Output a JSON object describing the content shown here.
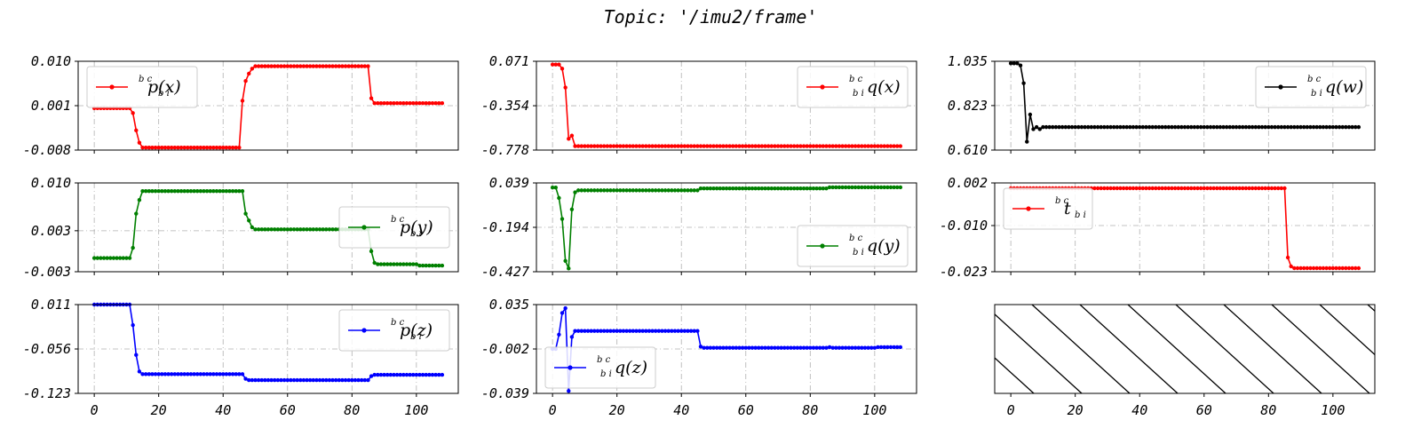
{
  "figure": {
    "title": "Topic: '/imu2/frame'"
  },
  "chart_data": [
    {
      "type": "line",
      "panel": "top-left",
      "series": [
        {
          "name": "p_x",
          "legend_main": "p",
          "legend_sup": "b^c",
          "legend_sub": "b^i",
          "legend_arg": "(x)",
          "color": "#ff0000",
          "segments": [
            [
              0,
              0.0005
            ],
            [
              11,
              0.0005
            ],
            [
              12,
              -0.0005
            ],
            [
              13,
              -0.004
            ],
            [
              14,
              -0.0065
            ],
            [
              15,
              -0.0075
            ],
            [
              45,
              -0.0075
            ],
            [
              46,
              0.002
            ],
            [
              47,
              0.006
            ],
            [
              48,
              0.0075
            ],
            [
              49,
              0.0085
            ],
            [
              50,
              0.009
            ],
            [
              85,
              0.009
            ],
            [
              86,
              0.0025
            ],
            [
              87,
              0.0015
            ],
            [
              108,
              0.0015
            ]
          ]
        }
      ],
      "yticks": [
        "0.010",
        "0.001",
        "-0.008"
      ],
      "ylim": [
        -0.008,
        0.01
      ],
      "xlim": [
        -5,
        113
      ],
      "xticks": [
        "0",
        "20",
        "40",
        "60",
        "80",
        "100"
      ],
      "show_xticklabels": false,
      "legend": "upper-left"
    },
    {
      "type": "line",
      "panel": "top-middle",
      "series": [
        {
          "name": "q_x",
          "legend_main": "q",
          "legend_sup": "b^c",
          "legend_sub": "b^i",
          "legend_arg": "(x)",
          "color": "#ff0000",
          "segments": [
            [
              0,
              0.04
            ],
            [
              2,
              0.04
            ],
            [
              3,
              0.0
            ],
            [
              4,
              -0.18
            ],
            [
              5,
              -0.67
            ],
            [
              6,
              -0.64
            ],
            [
              7,
              -0.74
            ],
            [
              108,
              -0.74
            ]
          ]
        }
      ],
      "yticks": [
        "0.071",
        "-0.354",
        "-0.778"
      ],
      "ylim": [
        -0.778,
        0.071
      ],
      "xlim": [
        -5,
        113
      ],
      "xticks": [
        "0",
        "20",
        "40",
        "60",
        "80",
        "100"
      ],
      "show_xticklabels": false,
      "legend": "upper-right"
    },
    {
      "type": "line",
      "panel": "top-right",
      "series": [
        {
          "name": "q_w",
          "legend_main": "q",
          "legend_sup": "b^c",
          "legend_sub": "b^i",
          "legend_arg": "(w)",
          "color": "#000000",
          "segments": [
            [
              0,
              1.025
            ],
            [
              2,
              1.025
            ],
            [
              3,
              1.015
            ],
            [
              4,
              0.93
            ],
            [
              5,
              0.65
            ],
            [
              6,
              0.78
            ],
            [
              7,
              0.71
            ],
            [
              8,
              0.72
            ],
            [
              9,
              0.71
            ],
            [
              10,
              0.72
            ],
            [
              108,
              0.72
            ]
          ]
        }
      ],
      "yticks": [
        "1.035",
        "0.823",
        "0.610"
      ],
      "ylim": [
        0.61,
        1.035
      ],
      "xlim": [
        -5,
        113
      ],
      "xticks": [
        "0",
        "20",
        "40",
        "60",
        "80",
        "100"
      ],
      "show_xticklabels": false,
      "legend": "upper-right"
    },
    {
      "type": "line",
      "panel": "middle-left",
      "series": [
        {
          "name": "p_y",
          "legend_main": "p",
          "legend_sup": "b^c",
          "legend_sub": "b^i",
          "legend_arg": "(y)",
          "color": "#008000",
          "segments": [
            [
              0,
              -0.001
            ],
            [
              11,
              -0.001
            ],
            [
              12,
              0.0005
            ],
            [
              13,
              0.0055
            ],
            [
              14,
              0.0075
            ],
            [
              15,
              0.0088
            ],
            [
              46,
              0.0088
            ],
            [
              47,
              0.0055
            ],
            [
              48,
              0.0045
            ],
            [
              49,
              0.0035
            ],
            [
              50,
              0.0032
            ],
            [
              85,
              0.0032
            ],
            [
              86,
              0.0
            ],
            [
              87,
              -0.0017
            ],
            [
              88,
              -0.0019
            ],
            [
              100,
              -0.0019
            ],
            [
              101,
              -0.0021
            ],
            [
              108,
              -0.0021
            ]
          ]
        }
      ],
      "yticks": [
        "0.010",
        "0.003",
        "-0.003"
      ],
      "ylim": [
        -0.003,
        0.01
      ],
      "xlim": [
        -5,
        113
      ],
      "xticks": [
        "0",
        "20",
        "40",
        "60",
        "80",
        "100"
      ],
      "show_xticklabels": false,
      "legend": "center-right"
    },
    {
      "type": "line",
      "panel": "middle-middle",
      "series": [
        {
          "name": "q_y",
          "legend_main": "q",
          "legend_sup": "b^c",
          "legend_sub": "b^i",
          "legend_arg": "(y)",
          "color": "#008000",
          "segments": [
            [
              0,
              0.015
            ],
            [
              1,
              0.015
            ],
            [
              2,
              -0.04
            ],
            [
              3,
              -0.15
            ],
            [
              4,
              -0.37
            ],
            [
              5,
              -0.41
            ],
            [
              6,
              -0.1
            ],
            [
              7,
              -0.01
            ],
            [
              8,
              0.0
            ],
            [
              45,
              0.0
            ],
            [
              46,
              0.01
            ],
            [
              85,
              0.01
            ],
            [
              86,
              0.016
            ],
            [
              108,
              0.016
            ]
          ]
        }
      ],
      "yticks": [
        "0.039",
        "-0.194",
        "-0.427"
      ],
      "ylim": [
        -0.427,
        0.039
      ],
      "xlim": [
        -5,
        113
      ],
      "xticks": [
        "0",
        "20",
        "40",
        "60",
        "80",
        "100"
      ],
      "show_xticklabels": false,
      "legend": "lower-right"
    },
    {
      "type": "line",
      "panel": "middle-right",
      "series": [
        {
          "name": "t",
          "legend_main": "t",
          "legend_sup": "b^c",
          "legend_sub": "b^i",
          "legend_arg": "",
          "color": "#ff0000",
          "segments": [
            [
              0,
              0.0005
            ],
            [
              85,
              0.0005
            ],
            [
              86,
              -0.019
            ],
            [
              87,
              -0.0215
            ],
            [
              88,
              -0.022
            ],
            [
              108,
              -0.022
            ]
          ]
        }
      ],
      "yticks": [
        "0.002",
        "-0.010",
        "-0.023"
      ],
      "ylim": [
        -0.023,
        0.002
      ],
      "xlim": [
        -5,
        113
      ],
      "xticks": [
        "0",
        "20",
        "40",
        "60",
        "80",
        "100"
      ],
      "show_xticklabels": false,
      "legend": "upper-left"
    },
    {
      "type": "line",
      "panel": "bottom-left",
      "series": [
        {
          "name": "p_z",
          "legend_main": "p",
          "legend_sup": "b^c",
          "legend_sub": "b^i",
          "legend_arg": "(z)",
          "color": "#0000ff",
          "segments": [
            [
              0,
              0.011
            ],
            [
              11,
              0.011
            ],
            [
              12,
              -0.02
            ],
            [
              13,
              -0.065
            ],
            [
              14,
              -0.09
            ],
            [
              15,
              -0.094
            ],
            [
              46,
              -0.094
            ],
            [
              47,
              -0.101
            ],
            [
              48,
              -0.103
            ],
            [
              85,
              -0.103
            ],
            [
              86,
              -0.097
            ],
            [
              87,
              -0.095
            ],
            [
              108,
              -0.095
            ]
          ]
        }
      ],
      "yticks": [
        "0.011",
        "-0.056",
        "-0.123"
      ],
      "ylim": [
        -0.123,
        0.011
      ],
      "xlim": [
        -5,
        113
      ],
      "xticks": [
        "0",
        "20",
        "40",
        "60",
        "80",
        "100"
      ],
      "show_xticklabels": true,
      "legend": "upper-right"
    },
    {
      "type": "line",
      "panel": "bottom-middle",
      "series": [
        {
          "name": "q_z",
          "legend_main": "q",
          "legend_sup": "b^c",
          "legend_sub": "b^i",
          "legend_arg": "(z)",
          "color": "#0000ff",
          "segments": [
            [
              0,
              -0.002
            ],
            [
              1,
              -0.002
            ],
            [
              2,
              0.01
            ],
            [
              3,
              0.028
            ],
            [
              4,
              0.032
            ],
            [
              5,
              -0.037
            ],
            [
              6,
              0.008
            ],
            [
              7,
              0.013
            ],
            [
              45,
              0.013
            ],
            [
              46,
              0.0
            ],
            [
              47,
              -0.001
            ],
            [
              85,
              -0.001
            ],
            [
              86,
              -0.0005
            ],
            [
              87,
              -0.001
            ],
            [
              100,
              -0.001
            ],
            [
              101,
              -0.0005
            ],
            [
              108,
              -0.0005
            ]
          ]
        }
      ],
      "yticks": [
        "0.035",
        "-0.002",
        "-0.039"
      ],
      "ylim": [
        -0.039,
        0.035
      ],
      "xlim": [
        -5,
        113
      ],
      "xticks": [
        "0",
        "20",
        "40",
        "60",
        "80",
        "100"
      ],
      "show_xticklabels": true,
      "legend": "lower-left"
    },
    {
      "type": "empty",
      "panel": "bottom-right",
      "hatched": true,
      "xlim": [
        -5,
        113
      ],
      "xticks": [
        "0",
        "20",
        "40",
        "60",
        "80",
        "100"
      ],
      "show_xticklabels": true
    }
  ]
}
